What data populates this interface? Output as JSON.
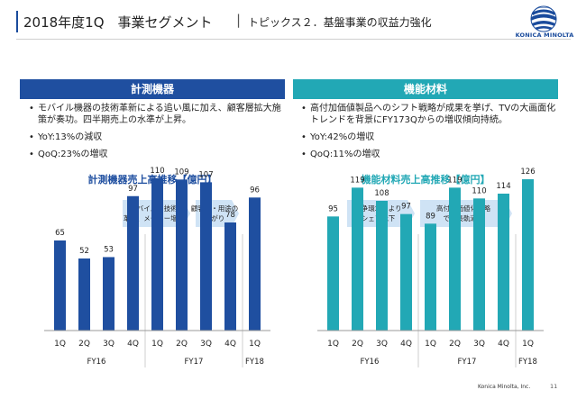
{
  "header": {
    "title": "2018年度1Q　事業セグメント",
    "separator": "|",
    "subtitle": "トピックス２．基盤事業の収益力強化",
    "logo_text": "KONICA MINOLTA",
    "logo_icon": "konica-minolta-globe-icon"
  },
  "left_panel": {
    "header": "計測機器",
    "bullets": [
      "モバイル機器の技術革新による追い風に加え、顧客層拡大施策が奏功。四半期売上の水準が上昇。",
      "YoY:13%の減収",
      "QoQ:23%の増収"
    ]
  },
  "right_panel": {
    "header": "機能材料",
    "bullets": [
      "高付加価値製品へのシフト戦略が成果を挙げ、TVの大画面化トレンドを背景にFY173Qからの増収傾向持続。",
      "YoY:42%の増収",
      "QoQ:11%の増収"
    ]
  },
  "chart_data": [
    {
      "type": "bar",
      "title": "計測機器売上高推移【億円】",
      "categories": [
        "1Q",
        "2Q",
        "3Q",
        "4Q",
        "1Q",
        "2Q",
        "3Q",
        "4Q",
        "1Q"
      ],
      "groups": [
        {
          "label": "FY16",
          "from": 0,
          "to": 3
        },
        {
          "label": "FY17",
          "from": 4,
          "to": 7
        },
        {
          "label": "FY18",
          "from": 8,
          "to": 8
        }
      ],
      "values": [
        65,
        52,
        53,
        97,
        110,
        109,
        107,
        78,
        96
      ],
      "ylim": [
        0,
        130
      ],
      "color": "#1f4fa0",
      "annotations": [
        {
          "text": "モバイルの技術\n革新、メーカー増加",
          "from": 3,
          "to": 5
        },
        {
          "text": "顧客層・用途の\n広がり",
          "from": 6,
          "to": 7
        }
      ]
    },
    {
      "type": "bar",
      "title": "機能材料売上高推移【億円】",
      "categories": [
        "1Q",
        "2Q",
        "3Q",
        "4Q",
        "1Q",
        "2Q",
        "3Q",
        "4Q",
        "1Q"
      ],
      "groups": [
        {
          "label": "FY16",
          "from": 0,
          "to": 3
        },
        {
          "label": "FY17",
          "from": 4,
          "to": 7
        },
        {
          "label": "FY18",
          "from": 8,
          "to": 8
        }
      ],
      "values": [
        95,
        119,
        108,
        97,
        89,
        119,
        110,
        114,
        126
      ],
      "ylim": [
        0,
        150
      ],
      "color": "#22a8b5",
      "annotations": [
        {
          "text": "競争環境により\nシェア低下",
          "from": 1,
          "to": 3
        },
        {
          "text": "高付加価値化戦略\nで成長軌道へ",
          "from": 4,
          "to": 7
        }
      ]
    }
  ],
  "footer": {
    "company": "Konica Minolta, Inc.",
    "page": "11"
  }
}
